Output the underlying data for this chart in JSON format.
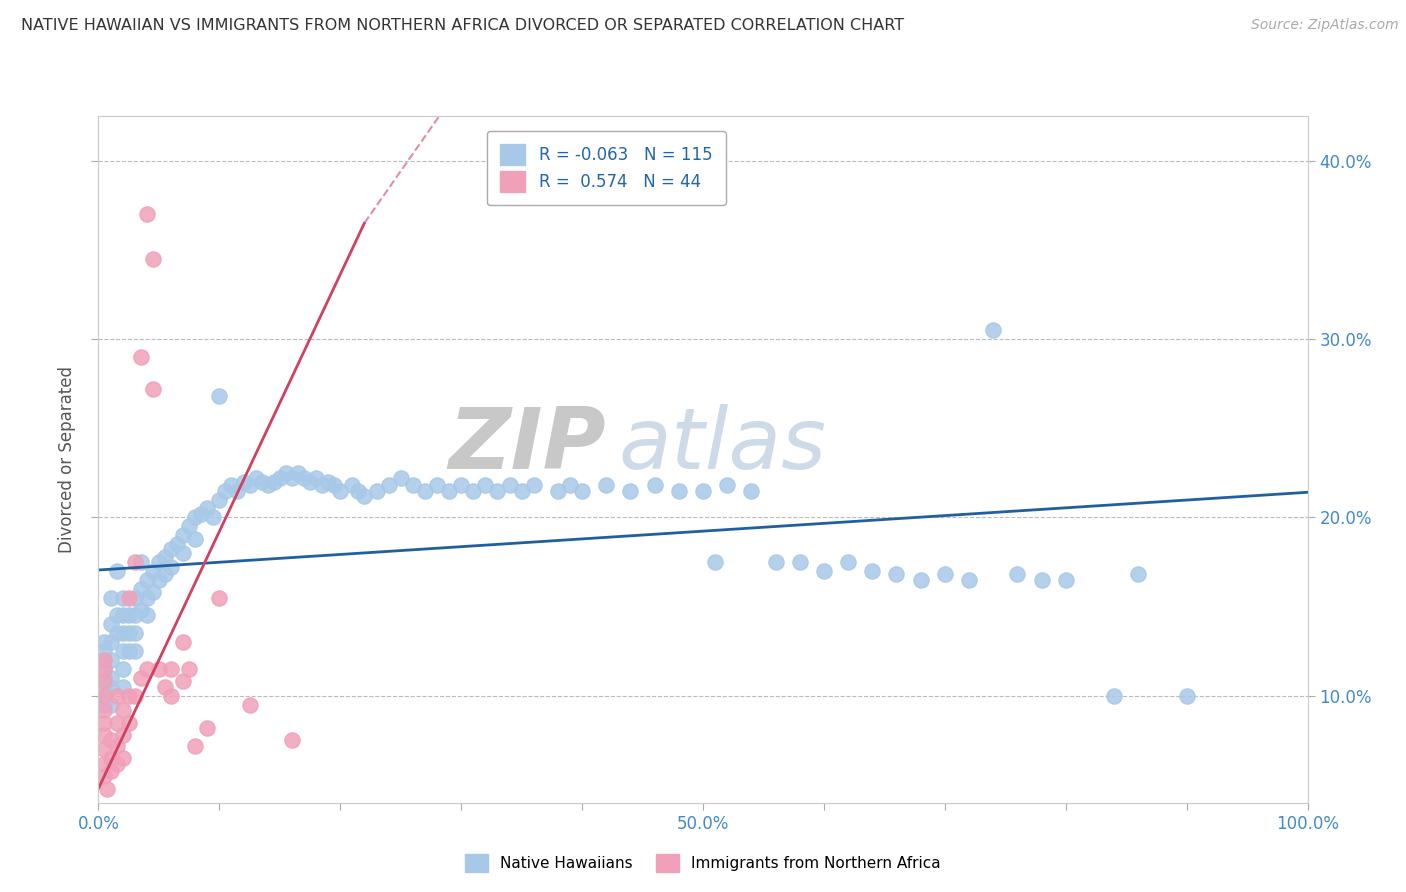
{
  "title": "NATIVE HAWAIIAN VS IMMIGRANTS FROM NORTHERN AFRICA DIVORCED OR SEPARATED CORRELATION CHART",
  "source": "Source: ZipAtlas.com",
  "ylabel": "Divorced or Separated",
  "xlim": [
    0.0,
    1.0
  ],
  "ylim": [
    0.04,
    0.425
  ],
  "xtick_pos": [
    0.0,
    0.1,
    0.2,
    0.3,
    0.4,
    0.5,
    0.6,
    0.7,
    0.8,
    0.9,
    1.0
  ],
  "xtick_labels": [
    "0.0%",
    "",
    "",
    "",
    "",
    "50.0%",
    "",
    "",
    "",
    "",
    "100.0%"
  ],
  "ytick_pos": [
    0.1,
    0.2,
    0.3,
    0.4
  ],
  "ytick_labels": [
    "10.0%",
    "20.0%",
    "30.0%",
    "40.0%"
  ],
  "blue_color": "#a8c8e8",
  "pink_color": "#f0a0b8",
  "blue_line_color": "#2060a0",
  "pink_line_color": "#d04060",
  "R_blue": -0.063,
  "N_blue": 115,
  "R_pink": 0.574,
  "N_pink": 44,
  "legend_label_blue": "Native Hawaiians",
  "legend_label_pink": "Immigrants from Northern Africa",
  "watermark_zip": "ZIP",
  "watermark_atlas": "atlas",
  "grid_color": "#cccccc",
  "grid_dash": [
    4,
    4
  ],
  "blue_scatter": [
    [
      0.005,
      0.13
    ],
    [
      0.005,
      0.125
    ],
    [
      0.005,
      0.12
    ],
    [
      0.005,
      0.115
    ],
    [
      0.005,
      0.11
    ],
    [
      0.005,
      0.105
    ],
    [
      0.005,
      0.1
    ],
    [
      0.005,
      0.095
    ],
    [
      0.01,
      0.155
    ],
    [
      0.01,
      0.14
    ],
    [
      0.01,
      0.13
    ],
    [
      0.01,
      0.12
    ],
    [
      0.01,
      0.11
    ],
    [
      0.01,
      0.105
    ],
    [
      0.01,
      0.095
    ],
    [
      0.015,
      0.17
    ],
    [
      0.015,
      0.145
    ],
    [
      0.015,
      0.135
    ],
    [
      0.02,
      0.155
    ],
    [
      0.02,
      0.145
    ],
    [
      0.02,
      0.135
    ],
    [
      0.02,
      0.125
    ],
    [
      0.02,
      0.115
    ],
    [
      0.02,
      0.105
    ],
    [
      0.025,
      0.145
    ],
    [
      0.025,
      0.135
    ],
    [
      0.025,
      0.125
    ],
    [
      0.03,
      0.155
    ],
    [
      0.03,
      0.145
    ],
    [
      0.03,
      0.135
    ],
    [
      0.03,
      0.125
    ],
    [
      0.035,
      0.175
    ],
    [
      0.035,
      0.16
    ],
    [
      0.035,
      0.148
    ],
    [
      0.04,
      0.165
    ],
    [
      0.04,
      0.155
    ],
    [
      0.04,
      0.145
    ],
    [
      0.045,
      0.17
    ],
    [
      0.045,
      0.158
    ],
    [
      0.05,
      0.175
    ],
    [
      0.05,
      0.165
    ],
    [
      0.055,
      0.178
    ],
    [
      0.055,
      0.168
    ],
    [
      0.06,
      0.182
    ],
    [
      0.06,
      0.172
    ],
    [
      0.065,
      0.185
    ],
    [
      0.07,
      0.19
    ],
    [
      0.07,
      0.18
    ],
    [
      0.075,
      0.195
    ],
    [
      0.08,
      0.2
    ],
    [
      0.08,
      0.188
    ],
    [
      0.085,
      0.202
    ],
    [
      0.09,
      0.205
    ],
    [
      0.095,
      0.2
    ],
    [
      0.1,
      0.268
    ],
    [
      0.1,
      0.21
    ],
    [
      0.105,
      0.215
    ],
    [
      0.11,
      0.218
    ],
    [
      0.115,
      0.215
    ],
    [
      0.12,
      0.22
    ],
    [
      0.125,
      0.218
    ],
    [
      0.13,
      0.222
    ],
    [
      0.135,
      0.22
    ],
    [
      0.14,
      0.218
    ],
    [
      0.145,
      0.22
    ],
    [
      0.15,
      0.222
    ],
    [
      0.155,
      0.225
    ],
    [
      0.16,
      0.222
    ],
    [
      0.165,
      0.225
    ],
    [
      0.17,
      0.222
    ],
    [
      0.175,
      0.22
    ],
    [
      0.18,
      0.222
    ],
    [
      0.185,
      0.218
    ],
    [
      0.19,
      0.22
    ],
    [
      0.195,
      0.218
    ],
    [
      0.2,
      0.215
    ],
    [
      0.21,
      0.218
    ],
    [
      0.215,
      0.215
    ],
    [
      0.22,
      0.212
    ],
    [
      0.23,
      0.215
    ],
    [
      0.24,
      0.218
    ],
    [
      0.25,
      0.222
    ],
    [
      0.26,
      0.218
    ],
    [
      0.27,
      0.215
    ],
    [
      0.28,
      0.218
    ],
    [
      0.29,
      0.215
    ],
    [
      0.3,
      0.218
    ],
    [
      0.31,
      0.215
    ],
    [
      0.32,
      0.218
    ],
    [
      0.33,
      0.215
    ],
    [
      0.34,
      0.218
    ],
    [
      0.35,
      0.215
    ],
    [
      0.36,
      0.218
    ],
    [
      0.38,
      0.215
    ],
    [
      0.39,
      0.218
    ],
    [
      0.4,
      0.215
    ],
    [
      0.42,
      0.218
    ],
    [
      0.44,
      0.215
    ],
    [
      0.46,
      0.218
    ],
    [
      0.48,
      0.215
    ],
    [
      0.5,
      0.215
    ],
    [
      0.51,
      0.175
    ],
    [
      0.52,
      0.218
    ],
    [
      0.54,
      0.215
    ],
    [
      0.56,
      0.175
    ],
    [
      0.58,
      0.175
    ],
    [
      0.6,
      0.17
    ],
    [
      0.62,
      0.175
    ],
    [
      0.64,
      0.17
    ],
    [
      0.66,
      0.168
    ],
    [
      0.68,
      0.165
    ],
    [
      0.7,
      0.168
    ],
    [
      0.72,
      0.165
    ],
    [
      0.74,
      0.305
    ],
    [
      0.76,
      0.168
    ],
    [
      0.78,
      0.165
    ],
    [
      0.8,
      0.165
    ],
    [
      0.84,
      0.1
    ],
    [
      0.86,
      0.168
    ],
    [
      0.9,
      0.1
    ]
  ],
  "pink_scatter": [
    [
      0.005,
      0.12
    ],
    [
      0.005,
      0.115
    ],
    [
      0.005,
      0.108
    ],
    [
      0.005,
      0.1
    ],
    [
      0.005,
      0.092
    ],
    [
      0.005,
      0.085
    ],
    [
      0.005,
      0.078
    ],
    [
      0.005,
      0.07
    ],
    [
      0.005,
      0.062
    ],
    [
      0.005,
      0.055
    ],
    [
      0.007,
      0.048
    ],
    [
      0.01,
      0.075
    ],
    [
      0.01,
      0.065
    ],
    [
      0.01,
      0.058
    ],
    [
      0.015,
      0.1
    ],
    [
      0.015,
      0.085
    ],
    [
      0.015,
      0.072
    ],
    [
      0.015,
      0.062
    ],
    [
      0.02,
      0.092
    ],
    [
      0.02,
      0.078
    ],
    [
      0.02,
      0.065
    ],
    [
      0.025,
      0.155
    ],
    [
      0.025,
      0.1
    ],
    [
      0.025,
      0.085
    ],
    [
      0.03,
      0.175
    ],
    [
      0.03,
      0.1
    ],
    [
      0.035,
      0.29
    ],
    [
      0.035,
      0.11
    ],
    [
      0.04,
      0.37
    ],
    [
      0.04,
      0.115
    ],
    [
      0.045,
      0.345
    ],
    [
      0.045,
      0.272
    ],
    [
      0.05,
      0.115
    ],
    [
      0.055,
      0.105
    ],
    [
      0.06,
      0.115
    ],
    [
      0.06,
      0.1
    ],
    [
      0.07,
      0.13
    ],
    [
      0.07,
      0.108
    ],
    [
      0.075,
      0.115
    ],
    [
      0.08,
      0.072
    ],
    [
      0.09,
      0.082
    ],
    [
      0.1,
      0.155
    ],
    [
      0.125,
      0.095
    ],
    [
      0.16,
      0.075
    ]
  ],
  "pink_trendline_x": [
    0.0,
    0.22
  ],
  "pink_trendline_y": [
    0.048,
    0.365
  ]
}
